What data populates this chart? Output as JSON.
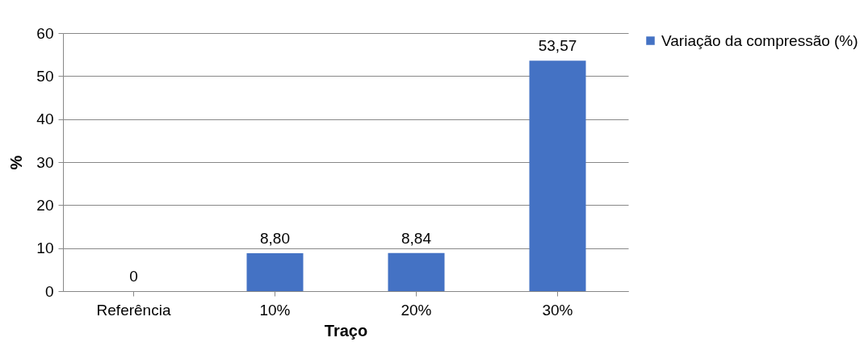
{
  "chart_data": {
    "type": "bar",
    "xlabel": "Traço",
    "ylabel": "%",
    "categories": [
      "Referência",
      "10%",
      "20%",
      "30%"
    ],
    "series": [
      {
        "name": "Variação da compressão (%)",
        "color": "#4472c4",
        "values": [
          0,
          8.8,
          8.84,
          53.57
        ],
        "value_labels": [
          "0",
          "8,80",
          "8,84",
          "53,57"
        ]
      }
    ],
    "ylim": [
      0,
      60
    ],
    "yticks": [
      0,
      10,
      20,
      30,
      40,
      50,
      60
    ],
    "grid": "y",
    "legend": "right"
  }
}
